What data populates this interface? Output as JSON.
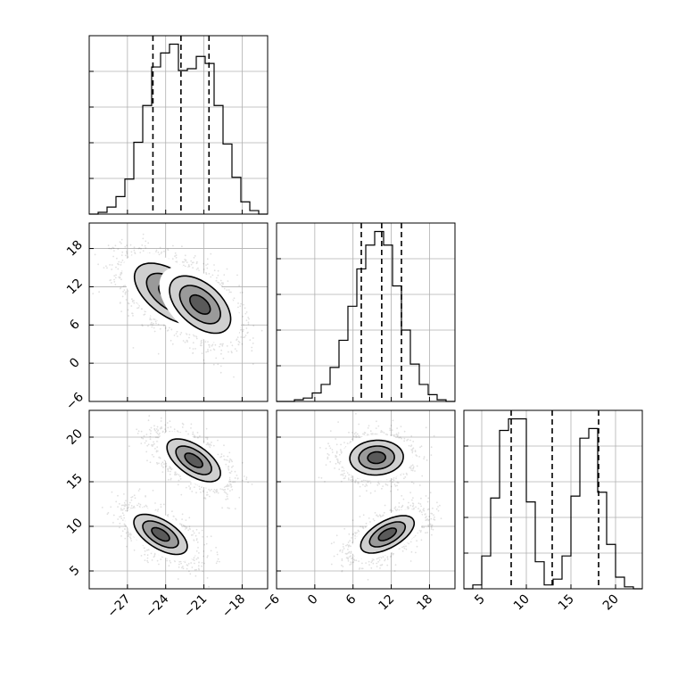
{
  "chart_data": {
    "type": "corner",
    "parameters": [
      {
        "name": "",
        "range": [
          -30,
          -16
        ],
        "ticks": [
          -27,
          -24,
          -21,
          -18
        ],
        "tick_labels": [
          "−27",
          "−24",
          "−21",
          "−18"
        ],
        "quantiles": [
          -25.0,
          -22.8,
          -20.6
        ],
        "hist": {
          "edges": [
            -30.0,
            -29.3,
            -28.6,
            -27.9,
            -27.2,
            -26.5,
            -25.8,
            -25.1,
            -24.4,
            -23.7,
            -23.0,
            -22.3,
            -21.6,
            -20.9,
            -20.2,
            -19.5,
            -18.8,
            -18.1,
            -17.4,
            -16.7,
            -16.0
          ],
          "values": [
            0.0,
            0.01,
            0.04,
            0.1,
            0.2,
            0.41,
            0.62,
            0.84,
            0.92,
            0.97,
            0.82,
            0.83,
            0.9,
            0.86,
            0.62,
            0.4,
            0.21,
            0.07,
            0.02,
            0.0
          ]
        }
      },
      {
        "name": "",
        "range": [
          -6,
          22
        ],
        "ticks": [
          -6,
          0,
          6,
          12,
          18
        ],
        "tick_labels": [
          "−6",
          "0",
          "6",
          "12",
          "18"
        ],
        "quantiles": [
          7.3,
          10.5,
          13.6
        ],
        "hist": {
          "edges": [
            -6.0,
            -4.6,
            -3.2,
            -1.8,
            -0.4,
            1.0,
            2.4,
            3.8,
            5.2,
            6.6,
            8.0,
            9.4,
            10.8,
            12.2,
            13.6,
            15.0,
            16.4,
            17.8,
            19.2,
            20.6,
            22.0
          ],
          "values": [
            0.0,
            0.0,
            0.01,
            0.02,
            0.05,
            0.1,
            0.2,
            0.36,
            0.56,
            0.78,
            0.92,
            1.0,
            0.92,
            0.68,
            0.42,
            0.22,
            0.1,
            0.04,
            0.01,
            0.0
          ]
        }
      },
      {
        "name": "",
        "range": [
          3,
          23
        ],
        "ticks": [
          5,
          10,
          15,
          20
        ],
        "tick_labels": [
          "5",
          "10",
          "15",
          "20"
        ],
        "quantiles": [
          8.3,
          12.9,
          18.1
        ],
        "hist": {
          "edges": [
            3.0,
            4.0,
            5.0,
            6.0,
            7.0,
            8.0,
            9.0,
            10.0,
            11.0,
            12.0,
            13.0,
            14.0,
            15.0,
            16.0,
            17.0,
            18.0,
            19.0,
            20.0,
            21.0,
            22.0,
            23.0
          ],
          "values": [
            0.0,
            0.02,
            0.17,
            0.47,
            0.82,
            0.88,
            0.88,
            0.45,
            0.14,
            0.02,
            0.05,
            0.17,
            0.48,
            0.78,
            0.83,
            0.5,
            0.23,
            0.06,
            0.01,
            0.0
          ]
        }
      }
    ],
    "pairs": [
      {
        "x_param": 0,
        "y_param": 1,
        "modes": [
          {
            "center": [
              -23.6,
              10.9
            ],
            "sx": 1.9,
            "sy": 3.2,
            "rho": -0.55,
            "weight": 0.6
          },
          {
            "center": [
              -21.3,
              9.2
            ],
            "sx": 1.6,
            "sy": 3.0,
            "rho": -0.5,
            "weight": 0.4
          }
        ]
      },
      {
        "x_param": 0,
        "y_param": 2,
        "modes": [
          {
            "center": [
              -21.8,
              17.4
            ],
            "sx": 1.4,
            "sy": 1.6,
            "rho": -0.6,
            "weight": 0.5
          },
          {
            "center": [
              -24.4,
              9.1
            ],
            "sx": 1.4,
            "sy": 1.5,
            "rho": -0.6,
            "weight": 0.5
          }
        ]
      },
      {
        "x_param": 1,
        "y_param": 2,
        "modes": [
          {
            "center": [
              9.7,
              17.7
            ],
            "sx": 2.8,
            "sy": 1.3,
            "rho": 0.05,
            "weight": 0.5
          },
          {
            "center": [
              11.4,
              9.1
            ],
            "sx": 2.8,
            "sy": 1.4,
            "rho": 0.6,
            "weight": 0.5
          }
        ]
      }
    ],
    "contour_levels": [
      0.5,
      1.0,
      1.5,
      2.0
    ],
    "grid": true,
    "legend": "none"
  }
}
